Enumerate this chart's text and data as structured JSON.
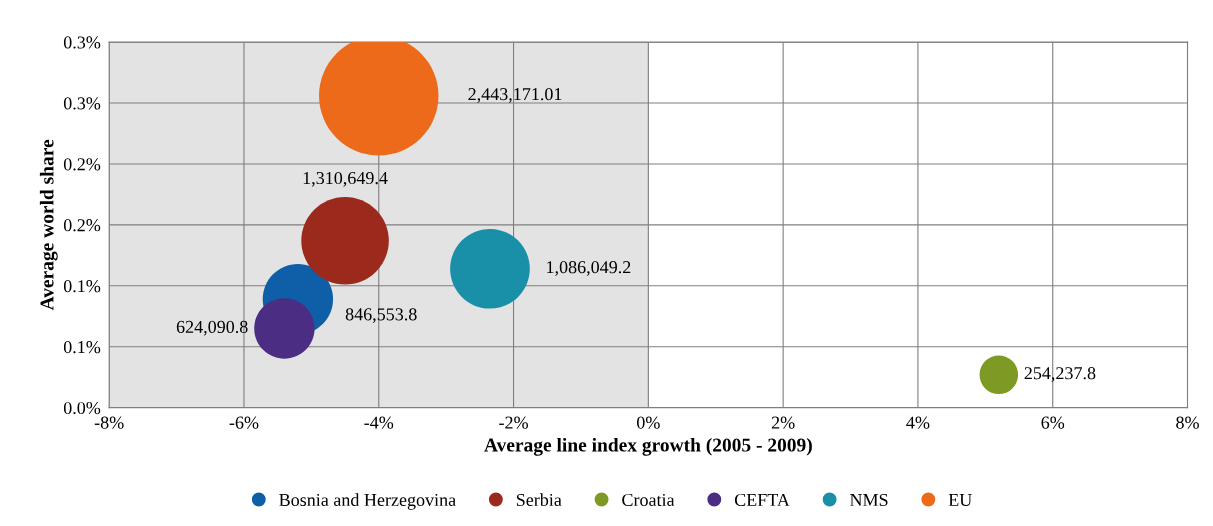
{
  "chart_data": {
    "type": "bubble",
    "xlabel": "Average line index growth (2005 - 2009)",
    "ylabel": "Average world share",
    "xlim": [
      -8,
      8
    ],
    "xticks": [
      {
        "value": -8,
        "label": "-8%"
      },
      {
        "value": -6,
        "label": "-6%"
      },
      {
        "value": -4,
        "label": "-4%"
      },
      {
        "value": -2,
        "label": "-2%"
      },
      {
        "value": 0,
        "label": "0%"
      },
      {
        "value": 2,
        "label": "2%"
      },
      {
        "value": 4,
        "label": "4%"
      },
      {
        "value": 6,
        "label": "6%"
      },
      {
        "value": 8,
        "label": "8%"
      }
    ],
    "ylim": [
      0,
      0.3
    ],
    "yticks": [
      {
        "value": 0,
        "label": "0.0%"
      },
      {
        "value": 0.05,
        "label": "0.1%"
      },
      {
        "value": 0.1,
        "label": "0.1%"
      },
      {
        "value": 0.15,
        "label": "0.2%"
      },
      {
        "value": 0.2,
        "label": "0.2%"
      },
      {
        "value": 0.25,
        "label": "0.3%"
      },
      {
        "value": 0.3,
        "label": "0.3%"
      }
    ],
    "grid": true,
    "legend": "bottom",
    "bands": [
      {
        "axis": "x",
        "from": -8,
        "to": 0,
        "color": "#e3e3e3"
      }
    ],
    "series": [
      {
        "name": "Bosnia and Herzegovina",
        "color": "#0e5fa8",
        "x": [
          -5.2
        ],
        "values": [
          0.089
        ],
        "sizes": [
          846553.8
        ],
        "value_labels": [
          "846,553.8"
        ]
      },
      {
        "name": "Serbia",
        "color": "#9b2a1d",
        "x": [
          -4.5
        ],
        "values": [
          0.137
        ],
        "sizes": [
          1310649.4
        ],
        "value_labels": [
          "1,310,649.4"
        ]
      },
      {
        "name": "Croatia",
        "color": "#7f9a24",
        "x": [
          5.2
        ],
        "values": [
          0.027
        ],
        "sizes": [
          254237.8
        ],
        "value_labels": [
          "254,237.8"
        ]
      },
      {
        "name": "CEFTA",
        "color": "#4b2e83",
        "x": [
          -5.4
        ],
        "values": [
          0.065
        ],
        "sizes": [
          624090.8
        ],
        "value_labels": [
          "624,090.8"
        ]
      },
      {
        "name": "NMS",
        "color": "#1a8fa8",
        "x": [
          -2.35
        ],
        "values": [
          0.114
        ],
        "sizes": [
          1086049.2
        ],
        "value_labels": [
          "1,086,049.2"
        ]
      },
      {
        "name": "EU",
        "color": "#ec6a1a",
        "x": [
          -4.0
        ],
        "values": [
          0.256
        ],
        "sizes": [
          2443171.01
        ],
        "value_labels": [
          "2,443,171.01"
        ]
      }
    ]
  }
}
